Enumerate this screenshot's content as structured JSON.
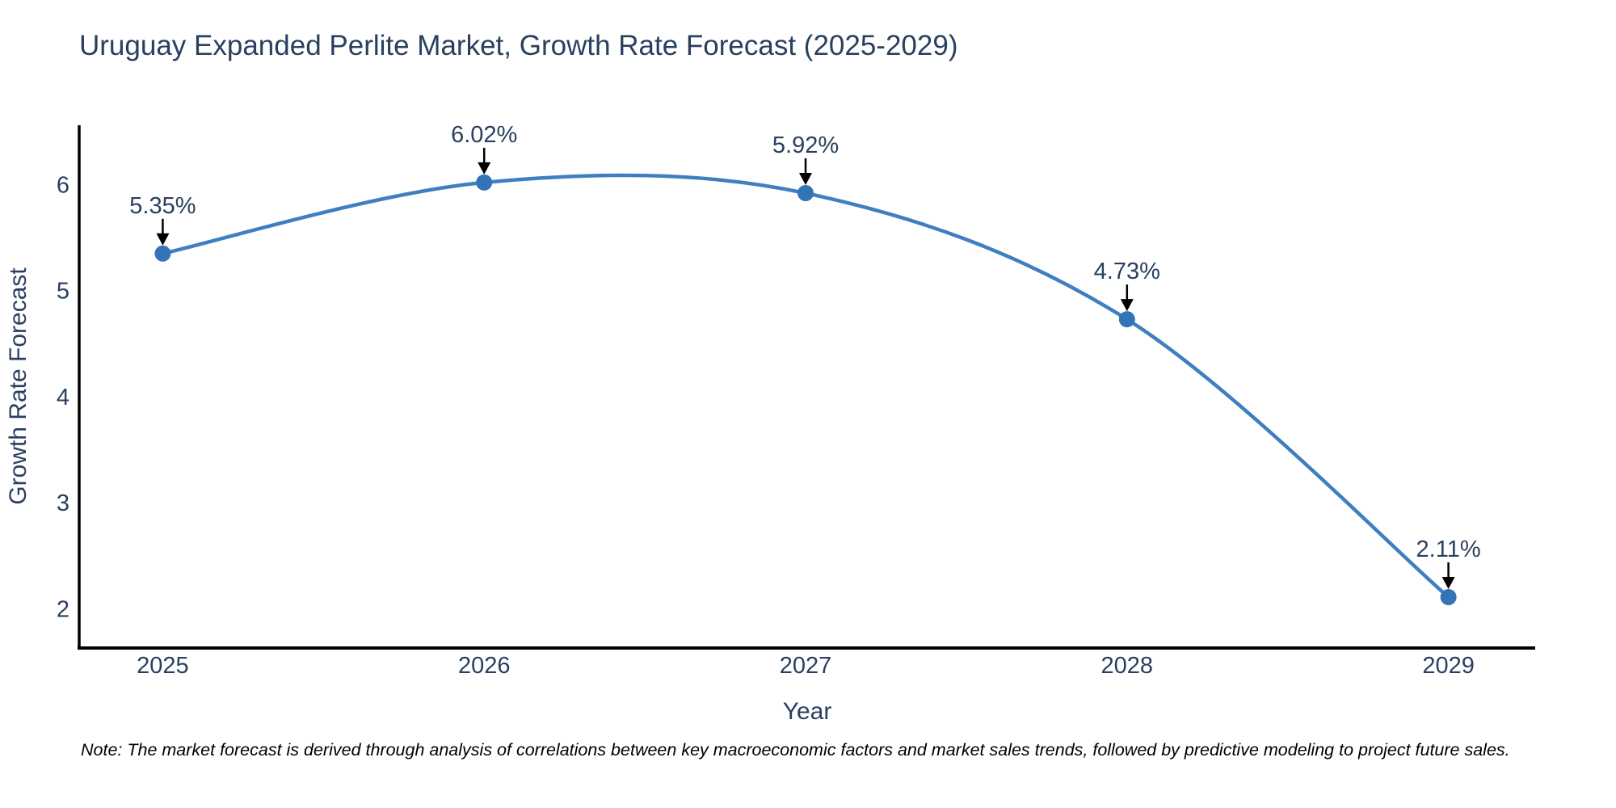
{
  "title": {
    "text": "Uruguay Expanded Perlite Market, Growth Rate Forecast (2025-2029)",
    "color": "#2a3f5f"
  },
  "note": {
    "text": "Note: The market forecast is derived through analysis of correlations between key macroeconomic factors and market sales trends, followed by predictive modeling to project future sales."
  },
  "chart_data": {
    "type": "line",
    "title": "Uruguay Expanded Perlite Market, Growth Rate Forecast (2025-2029)",
    "x": [
      2025,
      2026,
      2027,
      2028,
      2029
    ],
    "series": [
      {
        "name": "Growth Rate Forecast",
        "values": [
          5.35,
          6.02,
          5.92,
          4.73,
          2.11
        ]
      }
    ],
    "point_labels": [
      "5.35%",
      "6.02%",
      "5.92%",
      "4.73%",
      "2.11%"
    ],
    "xlabel": "Year",
    "ylabel": "Growth Rate Forecast",
    "xticks": [
      2025,
      2026,
      2027,
      2028,
      2029
    ],
    "yticks": [
      2,
      3,
      4,
      5,
      6
    ],
    "xlim": [
      2024.74,
      2029.27
    ],
    "ylim": [
      1.63,
      6.56
    ],
    "line_shape": "spline",
    "grid": false,
    "legend": "none",
    "colors": {
      "line": "#3f7fbf",
      "marker": "#3374b6",
      "axis": "#000000",
      "tick_label": "#2a3f5f",
      "axis_title": "#2a3f5f",
      "annotation_text": "#2a3f5f",
      "arrow": "#000000"
    }
  }
}
